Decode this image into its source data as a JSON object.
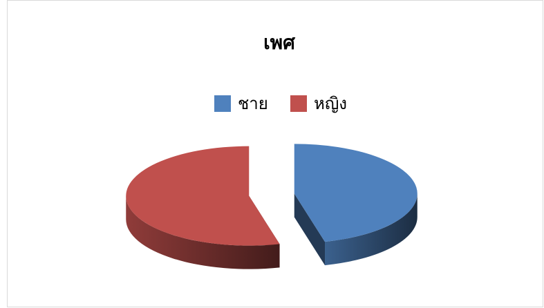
{
  "chart_data": {
    "type": "pie",
    "title": "เพศ",
    "categories": [
      "ชาย",
      "หญิง"
    ],
    "values": [
      46,
      54
    ],
    "colors": [
      "#4f81bd",
      "#c0504d"
    ],
    "legend": "top",
    "exploded": true
  }
}
